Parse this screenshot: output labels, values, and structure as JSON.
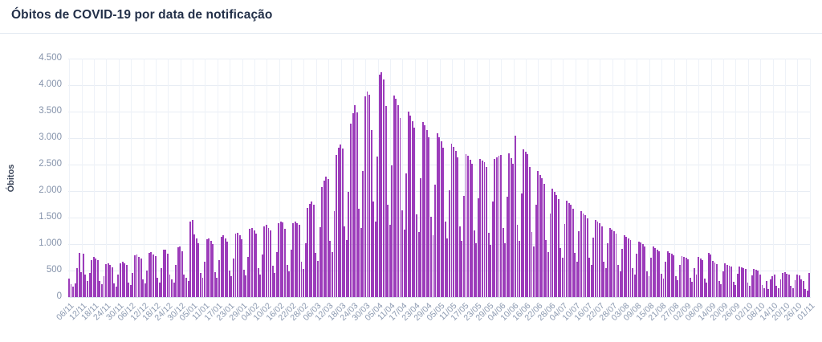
{
  "header": {
    "title": "Óbitos de COVID-19 por data de notificação"
  },
  "chart_data": {
    "type": "bar",
    "title": "Óbitos de COVID-19 por data de notificação",
    "xlabel": "",
    "ylabel": "Óbitos",
    "ylim": [
      0,
      4500
    ],
    "y_gridline_step": 500,
    "grid": "on",
    "legend": "none",
    "bar_color": "#9c3cba",
    "frequency": "daily",
    "start_date": "06/11",
    "end_date": "01/11",
    "x_tick_every": 6,
    "y_ticks": [
      "0",
      "500",
      "1.000",
      "1.500",
      "2.000",
      "2.500",
      "3.000",
      "3.500",
      "4.000",
      "4.500"
    ],
    "x_tick_labels": [
      "06/11",
      "12/11",
      "18/11",
      "24/11",
      "30/11",
      "06/12",
      "12/12",
      "18/12",
      "24/12",
      "30/12",
      "05/01",
      "11/01",
      "17/01",
      "23/01",
      "29/01",
      "04/02",
      "10/02",
      "16/02",
      "22/02",
      "28/02",
      "06/03",
      "12/03",
      "18/03",
      "24/03",
      "30/03",
      "05/04",
      "11/04",
      "17/04",
      "23/04",
      "29/04",
      "05/05",
      "11/05",
      "17/05",
      "23/05",
      "29/05",
      "04/06",
      "10/06",
      "16/06",
      "22/06",
      "28/06",
      "04/07",
      "10/07",
      "16/07",
      "22/07",
      "28/07",
      "03/08",
      "09/08",
      "15/08",
      "21/08",
      "27/08",
      "02/09",
      "08/09",
      "14/09",
      "20/09",
      "26/09",
      "02/10",
      "08/10",
      "14/10",
      "20/10",
      "26/10",
      "01/11"
    ],
    "values": [
      350,
      250,
      200,
      260,
      550,
      830,
      470,
      820,
      420,
      310,
      450,
      700,
      760,
      730,
      690,
      310,
      240,
      390,
      620,
      640,
      600,
      560,
      260,
      200,
      420,
      640,
      660,
      630,
      600,
      280,
      220,
      460,
      790,
      800,
      760,
      720,
      330,
      260,
      500,
      840,
      850,
      810,
      770,
      360,
      280,
      540,
      890,
      900,
      820,
      420,
      330,
      280,
      610,
      940,
      950,
      860,
      430,
      360,
      310,
      1430,
      1460,
      1180,
      1100,
      1010,
      460,
      360,
      660,
      1090,
      1110,
      1060,
      1000,
      470,
      370,
      690,
      1140,
      1160,
      1100,
      1040,
      500,
      390,
      730,
      1190,
      1210,
      1160,
      1090,
      510,
      410,
      760,
      1290,
      1310,
      1260,
      1200,
      550,
      430,
      800,
      1340,
      1360,
      1310,
      1260,
      590,
      460,
      850,
      1400,
      1430,
      1410,
      1290,
      610,
      480,
      890,
      1400,
      1420,
      1390,
      1360,
      660,
      530,
      1020,
      1680,
      1760,
      1800,
      1750,
      840,
      680,
      1320,
      2080,
      2200,
      2280,
      2230,
      1060,
      850,
      1620,
      2680,
      2820,
      2880,
      2810,
      1340,
      1070,
      1980,
      3280,
      3470,
      3620,
      3480,
      1670,
      1310,
      2380,
      3790,
      3880,
      3820,
      3150,
      1800,
      1420,
      2650,
      4200,
      4250,
      4100,
      3600,
      1740,
      1360,
      2480,
      3800,
      3740,
      3620,
      3380,
      1640,
      1280,
      2340,
      3500,
      3430,
      3320,
      3200,
      1560,
      1220,
      2240,
      3310,
      3250,
      3150,
      3010,
      1510,
      1160,
      2120,
      3090,
      3020,
      2940,
      2820,
      1420,
      1100,
      2010,
      2890,
      2840,
      2760,
      2640,
      1330,
      1060,
      1910,
      2700,
      2660,
      2590,
      2510,
      1260,
      1010,
      1860,
      2610,
      2570,
      2540,
      2460,
      1210,
      990,
      1810,
      2600,
      2640,
      2670,
      2680,
      1310,
      1020,
      1900,
      2710,
      2620,
      2510,
      3040,
      1360,
      1060,
      1950,
      2790,
      2740,
      2690,
      2450,
      1230,
      960,
      1750,
      2380,
      2300,
      2240,
      2130,
      1070,
      850,
      1580,
      2040,
      1980,
      1930,
      1850,
      930,
      740,
      1380,
      1820,
      1780,
      1740,
      1660,
      840,
      670,
      1250,
      1620,
      1580,
      1540,
      1480,
      750,
      600,
      1120,
      1450,
      1420,
      1390,
      1330,
      670,
      540,
      1010,
      1300,
      1270,
      1240,
      1190,
      600,
      480,
      910,
      1170,
      1140,
      1110,
      1070,
      540,
      430,
      820,
      1050,
      1030,
      1000,
      960,
      490,
      390,
      740,
      950,
      930,
      900,
      870,
      440,
      350,
      670,
      860,
      840,
      820,
      790,
      400,
      320,
      610,
      780,
      760,
      740,
      710,
      360,
      290,
      550,
      420,
      760,
      720,
      690,
      350,
      280,
      830,
      800,
      680,
      650,
      620,
      310,
      250,
      480,
      630,
      610,
      590,
      570,
      290,
      230,
      440,
      580,
      560,
      550,
      530,
      270,
      210,
      410,
      530,
      520,
      500,
      430,
      220,
      170,
      300,
      150,
      330,
      390,
      420,
      210,
      170,
      340,
      450,
      470,
      440,
      420,
      210,
      170,
      320,
      430,
      410,
      330,
      300,
      150,
      120,
      450
    ]
  }
}
